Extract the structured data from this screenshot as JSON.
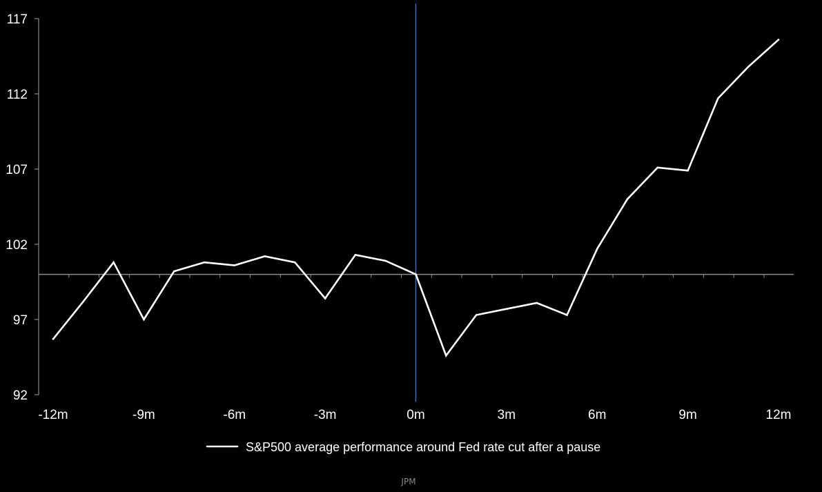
{
  "chart_data": {
    "type": "line",
    "title": "",
    "xlabel": "",
    "ylabel": "",
    "x": [
      -12,
      -11,
      -10,
      -9,
      -8,
      -7,
      -6,
      -5,
      -4,
      -3,
      -2,
      -1,
      0,
      1,
      2,
      3,
      4,
      5,
      6,
      7,
      8,
      9,
      10,
      11,
      12
    ],
    "series": [
      {
        "name": "S&P500 average performance around Fed rate cut after a pause",
        "color": "#ffffff",
        "values": [
          95.7,
          98.2,
          100.8,
          97.0,
          100.2,
          100.8,
          100.6,
          101.2,
          100.8,
          98.4,
          101.3,
          100.9,
          100.0,
          94.6,
          97.3,
          97.7,
          98.1,
          97.3,
          101.7,
          105.0,
          107.1,
          106.9,
          111.7,
          113.8,
          115.6
        ]
      }
    ],
    "reference_lines": {
      "horizontal_y": 100,
      "horizontal_color": "#8c8c8c",
      "vertical_x": 0,
      "vertical_color": "#3b6fd9"
    },
    "xlim": [
      -12,
      12
    ],
    "ylim": [
      92,
      117
    ],
    "x_ticks": [
      {
        "value": -12,
        "label": "-12m"
      },
      {
        "value": -9,
        "label": "-9m"
      },
      {
        "value": -6,
        "label": "-6m"
      },
      {
        "value": -3,
        "label": "-3m"
      },
      {
        "value": 0,
        "label": "0m"
      },
      {
        "value": 3,
        "label": "3m"
      },
      {
        "value": 6,
        "label": "6m"
      },
      {
        "value": 9,
        "label": "9m"
      },
      {
        "value": 12,
        "label": "12m"
      }
    ],
    "y_ticks": [
      {
        "value": 92,
        "label": "92"
      },
      {
        "value": 97,
        "label": "97"
      },
      {
        "value": 102,
        "label": "102"
      },
      {
        "value": 107,
        "label": "107"
      },
      {
        "value": 112,
        "label": "112"
      },
      {
        "value": 117,
        "label": "117"
      }
    ],
    "grid": false,
    "legend_position": "bottom-center",
    "source": "JPM",
    "background": "#000000",
    "axis_color": "#8c8c8c"
  }
}
